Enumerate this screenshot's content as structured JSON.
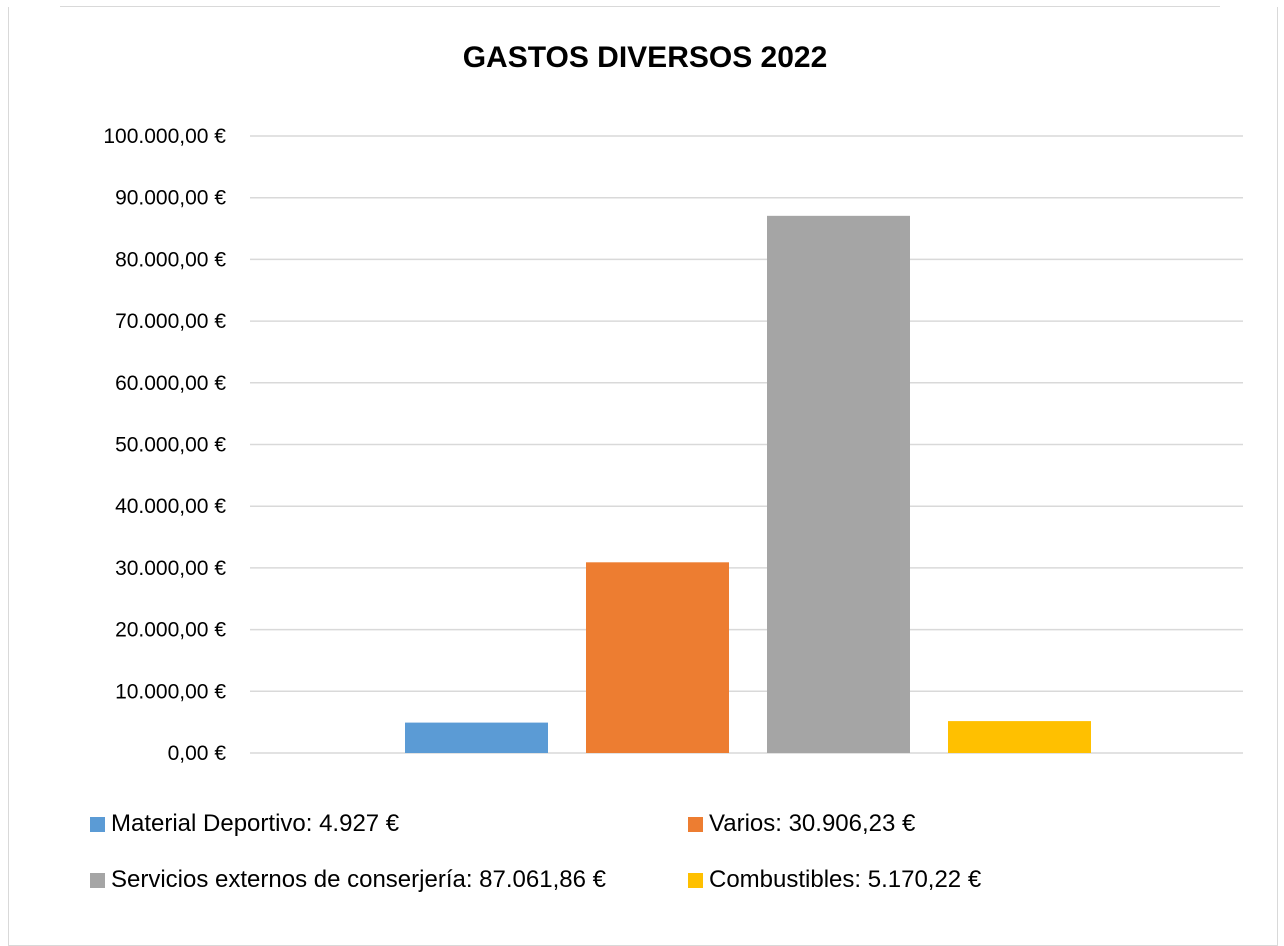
{
  "chart_data": {
    "type": "bar",
    "title": "GASTOS DIVERSOS 2022",
    "xlabel": "",
    "ylabel": "",
    "ylim": [
      0,
      100000
    ],
    "y_ticks": [
      0,
      10000,
      20000,
      30000,
      40000,
      50000,
      60000,
      70000,
      80000,
      90000,
      100000
    ],
    "y_tick_labels": [
      "0,00 €",
      "10.000,00 €",
      "20.000,00 €",
      "30.000,00 €",
      "40.000,00 €",
      "50.000,00 €",
      "60.000,00 €",
      "70.000,00 €",
      "80.000,00 €",
      "90.000,00 €",
      "100.000,00 €"
    ],
    "grid": true,
    "legend_position": "bottom",
    "series": [
      {
        "name": "Material Deportivo: 4.927 €",
        "value": 4927,
        "color": "#5b9bd5"
      },
      {
        "name": "Varios: 30.906,23 €",
        "value": 30906.23,
        "color": "#ed7d31"
      },
      {
        "name": "Servicios externos de conserjería: 87.061,86 €",
        "value": 87061.86,
        "color": "#a5a5a5"
      },
      {
        "name": "Combustibles: 5.170,22 €",
        "value": 5170.22,
        "color": "#ffc000"
      }
    ]
  }
}
